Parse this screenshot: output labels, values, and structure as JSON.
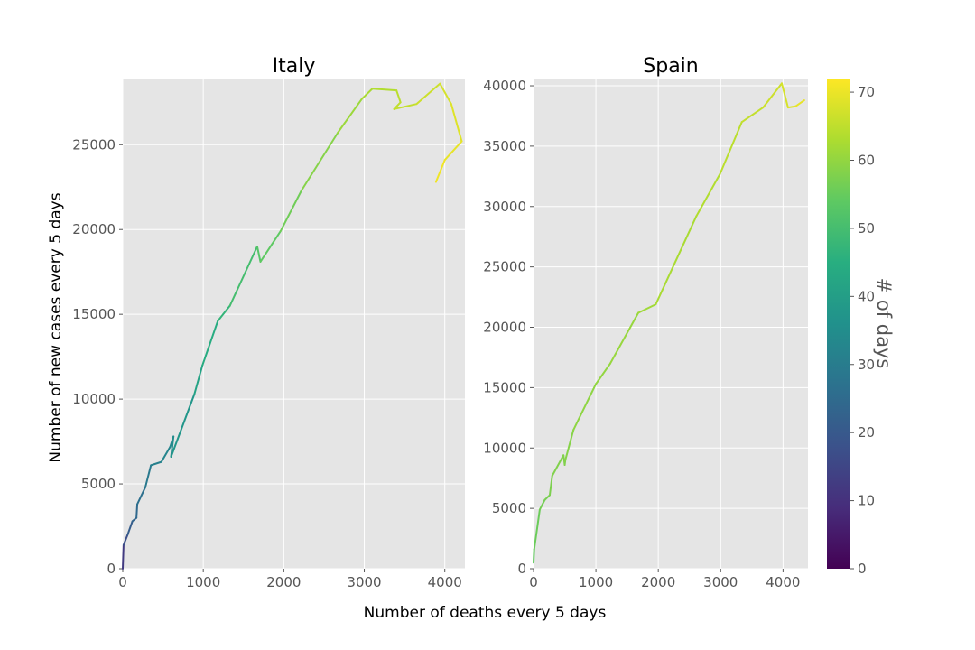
{
  "chart_data": {
    "type": "line",
    "shared_xlabel": "Number of deaths every 5 days",
    "shared_ylabel": "Number of new cases every 5 days",
    "colorbar": {
      "label": "# of days",
      "range": [
        0,
        72
      ],
      "ticks": [
        0,
        10,
        20,
        30,
        40,
        50,
        60,
        70
      ],
      "tick_labels": [
        "0",
        "10",
        "20",
        "30",
        "40",
        "50",
        "60",
        "70"
      ],
      "colormap": "viridis"
    },
    "background": "#e5e5e5",
    "grid": true,
    "panels": [
      {
        "title": "Italy",
        "xlim": [
          0,
          4250
        ],
        "ylim": [
          0,
          28900
        ],
        "xticks": [
          0,
          1000,
          2000,
          3000,
          4000
        ],
        "xtick_labels": [
          "0",
          "1000",
          "2000",
          "3000",
          "4000"
        ],
        "yticks": [
          0,
          5000,
          10000,
          15000,
          20000,
          25000
        ],
        "ytick_labels": [
          "0",
          "5000",
          "10000",
          "15000",
          "20000",
          "25000"
        ],
        "series": [
          {
            "x": [
              0,
              10,
              60,
              120,
              170,
              180,
              280,
              350,
              480,
              590,
              630,
              600,
              890,
              990,
              1180,
              1330,
              1670,
              1710,
              1960,
              2220,
              2670,
              2970,
              3100,
              3400,
              3450,
              3370,
              3650,
              3940,
              4080,
              4210,
              4000,
              3890
            ],
            "y": [
              0,
              1400,
              2000,
              2800,
              3000,
              3800,
              4800,
              6100,
              6300,
              7200,
              7800,
              6600,
              10300,
              12000,
              14600,
              15500,
              19000,
              18100,
              19900,
              22300,
              25700,
              27700,
              28300,
              28200,
              27500,
              27100,
              27400,
              28600,
              27400,
              25200,
              24100,
              22800
            ],
            "day_values": [
              10,
              15,
              20,
              22,
              24,
              25,
              28,
              30,
              32,
              33,
              34,
              35,
              40,
              43,
              46,
              48,
              52,
              53,
              55,
              57,
              60,
              62,
              63,
              64,
              65,
              65,
              66,
              67,
              68,
              69,
              70,
              71
            ]
          }
        ]
      },
      {
        "title": "Spain",
        "xlim": [
          0,
          4400
        ],
        "ylim": [
          0,
          40600
        ],
        "xticks": [
          0,
          1000,
          2000,
          3000,
          4000
        ],
        "xtick_labels": [
          "0",
          "1000",
          "2000",
          "3000",
          "4000"
        ],
        "yticks": [
          0,
          5000,
          10000,
          15000,
          20000,
          25000,
          30000,
          35000,
          40000
        ],
        "ytick_labels": [
          "0",
          "5000",
          "10000",
          "15000",
          "20000",
          "25000",
          "30000",
          "35000",
          "40000"
        ],
        "series": [
          {
            "x": [
              0,
              10,
              100,
              180,
              260,
              300,
              480,
              500,
              510,
              640,
              1000,
              1230,
              1680,
              1960,
              2610,
              2990,
              3340,
              3680,
              3980,
              4080,
              4200,
              4340
            ],
            "y": [
              500,
              1600,
              4900,
              5700,
              6100,
              7700,
              9400,
              8600,
              9000,
              11500,
              15300,
              17000,
              21200,
              21900,
              29200,
              32700,
              37000,
              38200,
              40200,
              38200,
              38300,
              38800
            ],
            "day_values": [
              54,
              55,
              56,
              57,
              57,
              58,
              58,
              58,
              58,
              59,
              60,
              60,
              61,
              62,
              63,
              64,
              65,
              66,
              67,
              68,
              69,
              70
            ]
          }
        ]
      }
    ]
  }
}
